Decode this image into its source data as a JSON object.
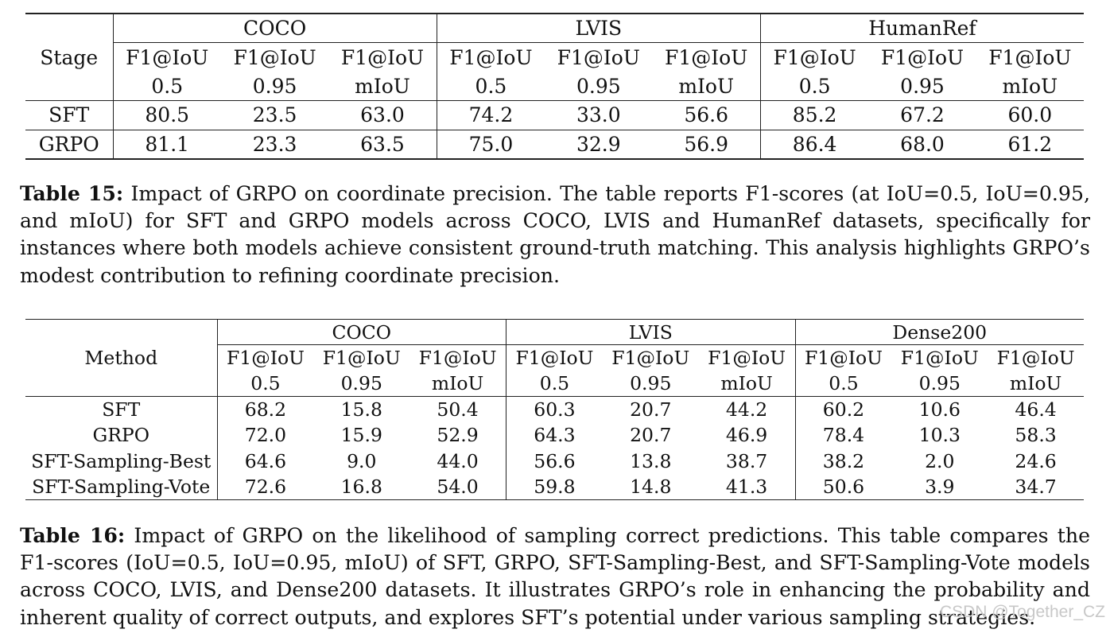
{
  "table15": {
    "stage_header": "Stage",
    "groups": [
      "COCO",
      "LVIS",
      "HumanRef"
    ],
    "metric_line1": [
      "F1@IoU",
      "F1@IoU",
      "F1@IoU"
    ],
    "metric_line2": [
      "0.5",
      "0.95",
      "mIoU"
    ],
    "rows": [
      {
        "label": "SFT",
        "values": [
          "80.5",
          "23.5",
          "63.0",
          "74.2",
          "33.0",
          "56.6",
          "85.2",
          "67.2",
          "60.0"
        ]
      },
      {
        "label": "GRPO",
        "values": [
          "81.1",
          "23.3",
          "63.5",
          "75.0",
          "32.9",
          "56.9",
          "86.4",
          "68.0",
          "61.2"
        ]
      }
    ]
  },
  "caption15": {
    "label": "Table 15:",
    "text": "Impact of GRPO on coordinate precision. The table reports F1-scores (at IoU=0.5, IoU=0.95, and mIoU) for SFT and GRPO models across COCO, LVIS and HumanRef datasets, specifically for instances where both models achieve consistent ground-truth matching. This analysis highlights GRPO’s modest contribution to refining coordinate precision."
  },
  "table16": {
    "method_header": "Method",
    "groups": [
      "COCO",
      "LVIS",
      "Dense200"
    ],
    "metric_line1": [
      "F1@IoU",
      "F1@IoU",
      "F1@IoU"
    ],
    "metric_line2": [
      "0.5",
      "0.95",
      "mIoU"
    ],
    "rows": [
      {
        "label": "SFT",
        "values": [
          "68.2",
          "15.8",
          "50.4",
          "60.3",
          "20.7",
          "44.2",
          "60.2",
          "10.6",
          "46.4"
        ]
      },
      {
        "label": "GRPO",
        "values": [
          "72.0",
          "15.9",
          "52.9",
          "64.3",
          "20.7",
          "46.9",
          "78.4",
          "10.3",
          "58.3"
        ]
      },
      {
        "label": "SFT-Sampling-Best",
        "values": [
          "64.6",
          "9.0",
          "44.0",
          "56.6",
          "13.8",
          "38.7",
          "38.2",
          "2.0",
          "24.6"
        ]
      },
      {
        "label": "SFT-Sampling-Vote",
        "values": [
          "72.6",
          "16.8",
          "54.0",
          "59.8",
          "14.8",
          "41.3",
          "50.6",
          "3.9",
          "34.7"
        ]
      }
    ]
  },
  "caption16": {
    "label": "Table 16:",
    "text": "Impact of GRPO on the likelihood of sampling correct predictions. This table compares the F1-scores (IoU=0.5, IoU=0.95, mIoU) of SFT, GRPO, SFT-Sampling-Best, and SFT-Sampling-Vote models across COCO, LVIS, and Dense200 datasets. It illustrates GRPO’s role in enhancing the probability and inherent quality of correct outputs, and explores SFT’s potential under various sampling strategies."
  },
  "watermark": "CSDN @Together_CZ"
}
